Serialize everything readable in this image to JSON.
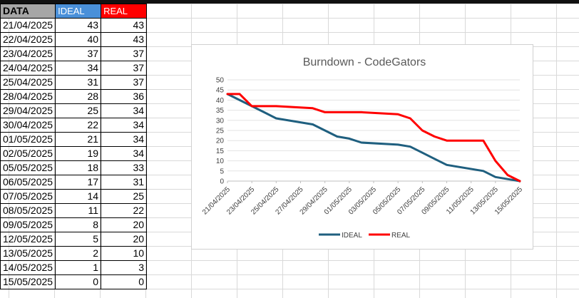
{
  "table": {
    "headers": [
      "DATA",
      "IDEAL",
      "REAL"
    ],
    "rows": [
      [
        "21/04/2025",
        "43",
        "43"
      ],
      [
        "22/04/2025",
        "40",
        "43"
      ],
      [
        "23/04/2025",
        "37",
        "37"
      ],
      [
        "24/04/2025",
        "34",
        "37"
      ],
      [
        "25/04/2025",
        "31",
        "37"
      ],
      [
        "28/04/2025",
        "28",
        "36"
      ],
      [
        "29/04/2025",
        "25",
        "34"
      ],
      [
        "30/04/2025",
        "22",
        "34"
      ],
      [
        "01/05/2025",
        "21",
        "34"
      ],
      [
        "02/05/2025",
        "19",
        "34"
      ],
      [
        "05/05/2025",
        "18",
        "33"
      ],
      [
        "06/05/2025",
        "17",
        "31"
      ],
      [
        "07/05/2025",
        "14",
        "25"
      ],
      [
        "08/05/2025",
        "11",
        "22"
      ],
      [
        "09/05/2025",
        "8",
        "20"
      ],
      [
        "12/05/2025",
        "5",
        "20"
      ],
      [
        "13/05/2025",
        "2",
        "10"
      ],
      [
        "14/05/2025",
        "1",
        "3"
      ],
      [
        "15/05/2025",
        "0",
        "0"
      ]
    ]
  },
  "colors": {
    "ideal": "#1f5f7f",
    "real": "#ff0000",
    "header_ideal": "#4a90d9",
    "header_real": "#ff0000",
    "header_date": "#a6a6a6"
  },
  "chart_data": {
    "type": "line",
    "title": "Burndown - CodeGators",
    "x": [
      "21/04/2025",
      "22/04/2025",
      "23/04/2025",
      "24/04/2025",
      "25/04/2025",
      "28/04/2025",
      "29/04/2025",
      "30/04/2025",
      "01/05/2025",
      "02/05/2025",
      "05/05/2025",
      "06/05/2025",
      "07/05/2025",
      "08/05/2025",
      "09/05/2025",
      "12/05/2025",
      "13/05/2025",
      "14/05/2025",
      "15/05/2025"
    ],
    "series": [
      {
        "name": "IDEAL",
        "values": [
          43,
          40,
          37,
          34,
          31,
          28,
          25,
          22,
          21,
          19,
          18,
          17,
          14,
          11,
          8,
          5,
          2,
          1,
          0
        ]
      },
      {
        "name": "REAL",
        "values": [
          43,
          43,
          37,
          37,
          37,
          36,
          34,
          34,
          34,
          34,
          33,
          31,
          25,
          22,
          20,
          20,
          10,
          3,
          0
        ]
      }
    ],
    "xlabel": "",
    "ylabel": "",
    "ylim": [
      0,
      50
    ],
    "y_ticks": [
      "0",
      "5",
      "10",
      "15",
      "20",
      "25",
      "30",
      "35",
      "40",
      "45",
      "50"
    ],
    "x_ticks": [
      "21/04/2025",
      "23/04/2025",
      "25/04/2025",
      "27/04/2025",
      "29/04/2025",
      "01/05/2025",
      "03/05/2025",
      "05/05/2025",
      "07/05/2025",
      "09/05/2025",
      "11/05/2025",
      "13/05/2025",
      "15/05/2025"
    ],
    "x_axis": "date",
    "grid": true,
    "legend": "bottom"
  }
}
